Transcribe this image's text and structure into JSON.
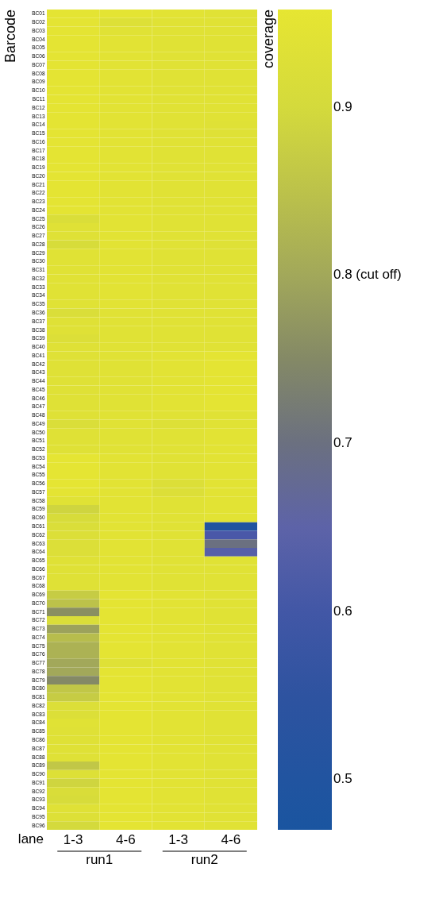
{
  "chart_data": {
    "type": "heatmap",
    "xlabel": "lane",
    "ylabel": "Barcode",
    "clabel": "coverage",
    "categories": [
      "1-3",
      "4-6",
      "1-3",
      "4-6"
    ],
    "y_categories": [
      "BC01",
      "BC02",
      "BC03",
      "BC04",
      "BC05",
      "BC06",
      "BC07",
      "BC08",
      "BC09",
      "BC10",
      "BC11",
      "BC12",
      "BC13",
      "BC14",
      "BC15",
      "BC16",
      "BC17",
      "BC18",
      "BC19",
      "BC20",
      "BC21",
      "BC22",
      "BC23",
      "BC24",
      "BC25",
      "BC26",
      "BC27",
      "BC28",
      "BC29",
      "BC30",
      "BC31",
      "BC32",
      "BC33",
      "BC34",
      "BC35",
      "BC36",
      "BC37",
      "BC38",
      "BC39",
      "BC40",
      "BC41",
      "BC42",
      "BC43",
      "BC44",
      "BC45",
      "BC46",
      "BC47",
      "BC48",
      "BC49",
      "BC50",
      "BC51",
      "BC52",
      "BC53",
      "BC54",
      "BC55",
      "BC56",
      "BC57",
      "BC58",
      "BC59",
      "BC60",
      "BC61",
      "BC62",
      "BC63",
      "BC64",
      "BC65",
      "BC66",
      "BC67",
      "BC68",
      "BC69",
      "BC70",
      "BC71",
      "BC72",
      "BC73",
      "BC74",
      "BC75",
      "BC76",
      "BC77",
      "BC78",
      "BC79",
      "BC80",
      "BC81",
      "BC82",
      "BC83",
      "BC84",
      "BC85",
      "BC86",
      "BC87",
      "BC88",
      "BC89",
      "BC90",
      "BC91",
      "BC92",
      "BC93",
      "BC94",
      "BC95",
      "BC96"
    ],
    "cells": [
      [
        0.95,
        0.95,
        0.945,
        0.94
      ],
      [
        0.95,
        0.93,
        0.94,
        0.94
      ],
      [
        0.95,
        0.94,
        0.94,
        0.94
      ],
      [
        0.95,
        0.945,
        0.94,
        0.94
      ],
      [
        0.95,
        0.945,
        0.94,
        0.94
      ],
      [
        0.95,
        0.945,
        0.94,
        0.94
      ],
      [
        0.95,
        0.945,
        0.94,
        0.94
      ],
      [
        0.95,
        0.945,
        0.94,
        0.94
      ],
      [
        0.95,
        0.945,
        0.94,
        0.94
      ],
      [
        0.95,
        0.945,
        0.94,
        0.94
      ],
      [
        0.95,
        0.945,
        0.94,
        0.94
      ],
      [
        0.95,
        0.945,
        0.94,
        0.94
      ],
      [
        0.95,
        0.945,
        0.94,
        0.94
      ],
      [
        0.95,
        0.945,
        0.94,
        0.935
      ],
      [
        0.95,
        0.945,
        0.94,
        0.935
      ],
      [
        0.95,
        0.945,
        0.94,
        0.94
      ],
      [
        0.95,
        0.945,
        0.94,
        0.94
      ],
      [
        0.95,
        0.945,
        0.94,
        0.94
      ],
      [
        0.95,
        0.945,
        0.94,
        0.94
      ],
      [
        0.95,
        0.945,
        0.94,
        0.94
      ],
      [
        0.95,
        0.945,
        0.94,
        0.94
      ],
      [
        0.95,
        0.945,
        0.94,
        0.94
      ],
      [
        0.95,
        0.945,
        0.94,
        0.94
      ],
      [
        0.95,
        0.945,
        0.94,
        0.94
      ],
      [
        0.92,
        0.945,
        0.94,
        0.94
      ],
      [
        0.935,
        0.945,
        0.94,
        0.94
      ],
      [
        0.935,
        0.945,
        0.94,
        0.94
      ],
      [
        0.91,
        0.945,
        0.94,
        0.935
      ],
      [
        0.94,
        0.945,
        0.94,
        0.94
      ],
      [
        0.94,
        0.945,
        0.94,
        0.94
      ],
      [
        0.94,
        0.945,
        0.94,
        0.94
      ],
      [
        0.94,
        0.945,
        0.94,
        0.94
      ],
      [
        0.94,
        0.945,
        0.94,
        0.94
      ],
      [
        0.94,
        0.945,
        0.94,
        0.94
      ],
      [
        0.94,
        0.945,
        0.94,
        0.94
      ],
      [
        0.92,
        0.94,
        0.94,
        0.94
      ],
      [
        0.935,
        0.94,
        0.94,
        0.94
      ],
      [
        0.935,
        0.94,
        0.94,
        0.94
      ],
      [
        0.925,
        0.94,
        0.94,
        0.94
      ],
      [
        0.935,
        0.94,
        0.94,
        0.94
      ],
      [
        0.935,
        0.94,
        0.945,
        0.95
      ],
      [
        0.935,
        0.94,
        0.945,
        0.95
      ],
      [
        0.935,
        0.94,
        0.945,
        0.95
      ],
      [
        0.935,
        0.94,
        0.945,
        0.95
      ],
      [
        0.935,
        0.94,
        0.945,
        0.95
      ],
      [
        0.935,
        0.94,
        0.945,
        0.95
      ],
      [
        0.935,
        0.94,
        0.945,
        0.95
      ],
      [
        0.935,
        0.94,
        0.94,
        0.94
      ],
      [
        0.92,
        0.94,
        0.93,
        0.94
      ],
      [
        0.935,
        0.94,
        0.94,
        0.945
      ],
      [
        0.935,
        0.94,
        0.94,
        0.945
      ],
      [
        0.935,
        0.94,
        0.94,
        0.945
      ],
      [
        0.955,
        0.945,
        0.94,
        0.945
      ],
      [
        0.955,
        0.945,
        0.94,
        0.945
      ],
      [
        0.955,
        0.945,
        0.94,
        0.945
      ],
      [
        0.955,
        0.945,
        0.925,
        0.945
      ],
      [
        0.95,
        0.945,
        0.925,
        0.945
      ],
      [
        0.94,
        0.945,
        0.94,
        0.945
      ],
      [
        0.89,
        0.945,
        0.94,
        0.945
      ],
      [
        0.91,
        0.945,
        0.94,
        0.945
      ],
      [
        0.92,
        0.945,
        0.94,
        0.5
      ],
      [
        0.925,
        0.945,
        0.94,
        0.62
      ],
      [
        0.925,
        0.945,
        0.94,
        0.7
      ],
      [
        0.925,
        0.945,
        0.94,
        0.64
      ],
      [
        0.935,
        0.945,
        0.94,
        0.94
      ],
      [
        0.935,
        0.945,
        0.94,
        0.94
      ],
      [
        0.935,
        0.945,
        0.94,
        0.94
      ],
      [
        0.935,
        0.945,
        0.94,
        0.94
      ],
      [
        0.87,
        0.95,
        0.945,
        0.94
      ],
      [
        0.85,
        0.95,
        0.945,
        0.94
      ],
      [
        0.76,
        0.95,
        0.945,
        0.94
      ],
      [
        0.92,
        0.95,
        0.945,
        0.94
      ],
      [
        0.79,
        0.95,
        0.945,
        0.94
      ],
      [
        0.84,
        0.95,
        0.945,
        0.94
      ],
      [
        0.82,
        0.95,
        0.945,
        0.94
      ],
      [
        0.82,
        0.95,
        0.945,
        0.94
      ],
      [
        0.8,
        0.935,
        0.945,
        0.94
      ],
      [
        0.8,
        0.95,
        0.945,
        0.94
      ],
      [
        0.75,
        0.95,
        0.945,
        0.94
      ],
      [
        0.86,
        0.95,
        0.945,
        0.94
      ],
      [
        0.87,
        0.95,
        0.945,
        0.94
      ],
      [
        0.925,
        0.95,
        0.945,
        0.94
      ],
      [
        0.925,
        0.95,
        0.945,
        0.94
      ],
      [
        0.94,
        0.95,
        0.945,
        0.94
      ],
      [
        0.935,
        0.95,
        0.945,
        0.94
      ],
      [
        0.935,
        0.95,
        0.945,
        0.94
      ],
      [
        0.935,
        0.95,
        0.945,
        0.94
      ],
      [
        0.935,
        0.95,
        0.945,
        0.94
      ],
      [
        0.86,
        0.95,
        0.945,
        0.94
      ],
      [
        0.93,
        0.95,
        0.945,
        0.94
      ],
      [
        0.89,
        0.95,
        0.945,
        0.94
      ],
      [
        0.915,
        0.95,
        0.945,
        0.94
      ],
      [
        0.91,
        0.95,
        0.945,
        0.94
      ],
      [
        0.935,
        0.95,
        0.945,
        0.94
      ],
      [
        0.93,
        0.95,
        0.945,
        0.94
      ],
      [
        0.9,
        0.95,
        0.945,
        0.94
      ]
    ],
    "clim": [
      0.47,
      0.958
    ],
    "cticks": [
      0.9,
      {
        "value": 0.8,
        "label": "0.8 (cut off)"
      },
      0.7,
      0.6,
      0.5
    ],
    "annotations": [
      "run1",
      "run2"
    ]
  }
}
